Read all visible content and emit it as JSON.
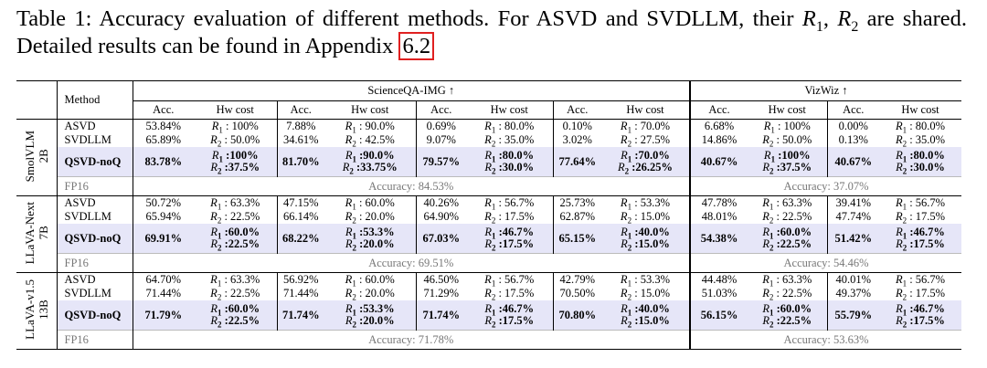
{
  "caption": {
    "lead": "Table 1:  Accuracy evaluation of different methods.  For ASVD and SVDLLM, their",
    "symbols": [
      {
        "base": "R",
        "sub": "1"
      },
      {
        "base": "R",
        "sub": "2"
      }
    ],
    "separator": ",",
    "tail": "are shared. Detailed results can be found in Appendix",
    "link": "6.2"
  },
  "table": {
    "method_header": "Method",
    "groups": [
      {
        "name": "ScienceQA-IMG ↑",
        "columns": [
          "Acc.",
          "Hw cost",
          "Acc.",
          "Hw cost",
          "Acc.",
          "Hw cost",
          "Acc.",
          "Hw cost"
        ]
      },
      {
        "name": "VizWiz ↑",
        "columns": [
          "Acc.",
          "Hw cost",
          "Acc.",
          "Hw cost"
        ]
      }
    ],
    "models": [
      {
        "name": [
          "SmolVLM",
          "2B"
        ],
        "rows": [
          {
            "method": "ASVD",
            "cells": [
              "53.84%",
              "R1 : 100%",
              "7.88%",
              "R1 : 90.0%",
              "0.69%",
              "R1 : 80.0%",
              "0.10%",
              "R1 : 70.0%",
              "6.68%",
              "R1 : 100%",
              "0.00%",
              "R1 : 80.0%"
            ]
          },
          {
            "method": "SVDLLM",
            "cells": [
              "65.89%",
              "R2 : 50.0%",
              "34.61%",
              "R2 : 42.5%",
              "9.07%",
              "R2 : 35.0%",
              "3.02%",
              "R2 : 27.5%",
              "14.86%",
              "R2 : 50.0%",
              "0.13%",
              "R2 : 35.0%"
            ]
          },
          {
            "method": "QSVD-noQ",
            "cells": [
              "83.78%",
              [
                "R1 :100%",
                "R2 :37.5%"
              ],
              "81.70%",
              [
                "R1 :90.0%",
                "R2 :33.75%"
              ],
              "79.57%",
              [
                "R1 :80.0%",
                "R2 :30.0%"
              ],
              "77.64%",
              [
                "R1 :70.0%",
                "R2 :26.25%"
              ],
              "40.67%",
              [
                "R1 :100%",
                "R2 :37.5%"
              ],
              "40.67%",
              [
                "R1 :80.0%",
                "R2 :30.0%"
              ]
            ]
          },
          {
            "method": "FP16",
            "cells": [
              "Accuracy: 84.53%",
              "Accuracy: 37.07%"
            ]
          }
        ]
      },
      {
        "name": [
          "LLaVA-Next",
          "7B"
        ],
        "rows": [
          {
            "method": "ASVD",
            "cells": [
              "50.72%",
              "R1 : 63.3%",
              "47.15%",
              "R1 : 60.0%",
              "40.26%",
              "R1 : 56.7%",
              "25.73%",
              "R1 : 53.3%",
              "47.78%",
              "R1 : 63.3%",
              "39.41%",
              "R1 : 56.7%"
            ]
          },
          {
            "method": "SVDLLM",
            "cells": [
              "65.94%",
              "R2 : 22.5%",
              "66.14%",
              "R2 : 20.0%",
              "64.90%",
              "R2 : 17.5%",
              "62.87%",
              "R2 : 15.0%",
              "48.01%",
              "R2 : 22.5%",
              "47.74%",
              "R2 : 17.5%"
            ]
          },
          {
            "method": "QSVD-noQ",
            "cells": [
              "69.91%",
              [
                "R1 :60.0%",
                "R2 :22.5%"
              ],
              "68.22%",
              [
                "R1 :53.3%",
                "R2 :20.0%"
              ],
              "67.03%",
              [
                "R1 :46.7%",
                "R2 :17.5%"
              ],
              "65.15%",
              [
                "R1 :40.0%",
                "R2 :15.0%"
              ],
              "54.38%",
              [
                "R1 :60.0%",
                "R2 :22.5%"
              ],
              "51.42%",
              [
                "R1 :46.7%",
                "R2 :17.5%"
              ]
            ]
          },
          {
            "method": "FP16",
            "cells": [
              "Accuracy: 69.51%",
              "Accuracy: 54.46%"
            ]
          }
        ]
      },
      {
        "name": [
          "LLaVA-v1.5",
          "13B"
        ],
        "rows": [
          {
            "method": "ASVD",
            "cells": [
              "64.70%",
              "R1 : 63.3%",
              "56.92%",
              "R1 : 60.0%",
              "46.50%",
              "R1 : 56.7%",
              "42.79%",
              "R1 : 53.3%",
              "44.48%",
              "R1 : 63.3%",
              "40.01%",
              "R1 : 56.7%"
            ]
          },
          {
            "method": "SVDLLM",
            "cells": [
              "71.44%",
              "R2 : 22.5%",
              "71.44%",
              "R2 : 20.0%",
              "71.29%",
              "R2 : 17.5%",
              "70.50%",
              "R2 : 15.0%",
              "51.03%",
              "R2 : 22.5%",
              "49.37%",
              "R2 : 17.5%"
            ]
          },
          {
            "method": "QSVD-noQ",
            "cells": [
              "71.79%",
              [
                "R1 :60.0%",
                "R2 :22.5%"
              ],
              "71.74%",
              [
                "R1 :53.3%",
                "R2 :20.0%"
              ],
              "71.74%",
              [
                "R1 :46.7%",
                "R2 :17.5%"
              ],
              "70.80%",
              [
                "R1 :40.0%",
                "R2 :15.0%"
              ],
              "56.15%",
              [
                "R1 :60.0%",
                "R2 :22.5%"
              ],
              "55.79%",
              [
                "R1 :46.7%",
                "R2 :17.5%"
              ]
            ]
          },
          {
            "method": "FP16",
            "cells": [
              "Accuracy: 71.78%",
              "Accuracy: 53.63%"
            ]
          }
        ]
      }
    ]
  }
}
